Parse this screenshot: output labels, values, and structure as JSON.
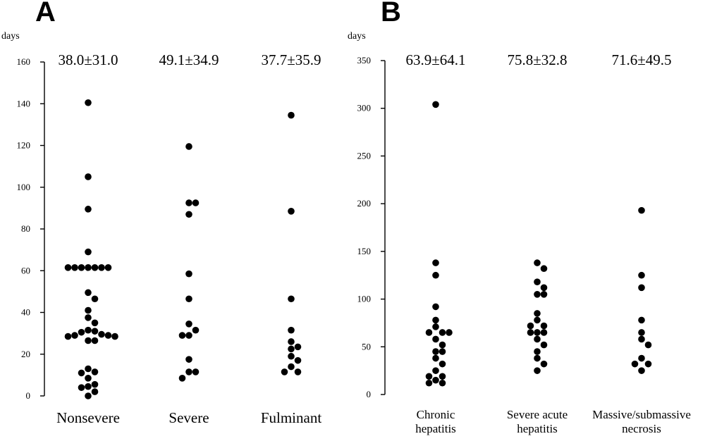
{
  "chart_data": [
    {
      "panel": "A",
      "type": "scatter",
      "ylabel": "days",
      "ylim": [
        0,
        160
      ],
      "yticks": [
        0,
        20,
        40,
        60,
        80,
        100,
        120,
        140,
        160
      ],
      "grid": false,
      "categories": [
        "Nonsevere",
        "Severe",
        "Fulminant"
      ],
      "stats": [
        "38.0±31.0",
        "49.1±34.9",
        "37.7±35.9"
      ],
      "series": [
        {
          "category": "Nonsevere",
          "values": [
            140.5,
            105,
            89.5,
            69,
            61.5,
            61.5,
            61.5,
            61.5,
            61.5,
            61.5,
            61.5,
            49.5,
            46.5,
            41,
            37.5,
            35,
            31.5,
            31,
            30.5,
            29.5,
            29,
            29,
            28.5,
            28.5,
            26.5,
            26.5,
            13,
            11.5,
            11,
            8.5,
            5.5,
            4.5,
            4,
            2,
            0
          ]
        },
        {
          "category": "Severe",
          "values": [
            119.5,
            92.5,
            92.5,
            87,
            58.5,
            46.5,
            34.5,
            31.5,
            29,
            29,
            17.5,
            11.5,
            11.5,
            8.5
          ]
        },
        {
          "category": "Fulminant",
          "values": [
            134.5,
            88.5,
            46.5,
            31.5,
            26,
            23.5,
            22.5,
            19,
            17,
            14,
            11.5,
            11.5
          ]
        }
      ]
    },
    {
      "panel": "B",
      "type": "scatter",
      "ylabel": "days",
      "ylim": [
        0,
        350
      ],
      "yticks": [
        0,
        50,
        100,
        150,
        200,
        250,
        300,
        350
      ],
      "grid": false,
      "categories": [
        "Chronic hepatitis",
        "Severe acute hepatitis",
        "Massive/submassive necrosis"
      ],
      "category_lines": [
        [
          "Chronic",
          "hepatitis"
        ],
        [
          "Severe acute",
          "hepatitis"
        ],
        [
          "Massive/submassive",
          "necrosis"
        ]
      ],
      "stats": [
        "63.9±64.1",
        "75.8±32.8",
        "71.6±49.5"
      ],
      "series": [
        {
          "category": "Chronic hepatitis",
          "values": [
            304,
            138,
            125,
            92,
            78,
            71,
            65,
            65,
            65,
            58,
            52,
            45,
            45,
            38,
            32,
            25,
            19,
            19,
            15,
            12,
            12
          ]
        },
        {
          "category": "Severe acute hepatitis",
          "values": [
            138,
            132,
            118,
            112,
            105,
            105,
            85,
            78,
            72,
            72,
            65,
            65,
            65,
            58,
            52,
            45,
            38,
            32,
            25
          ]
        },
        {
          "category": "Massive/submassive necrosis",
          "values": [
            193,
            125,
            112,
            78,
            65,
            58,
            52,
            38,
            32,
            32,
            25
          ]
        }
      ]
    }
  ]
}
